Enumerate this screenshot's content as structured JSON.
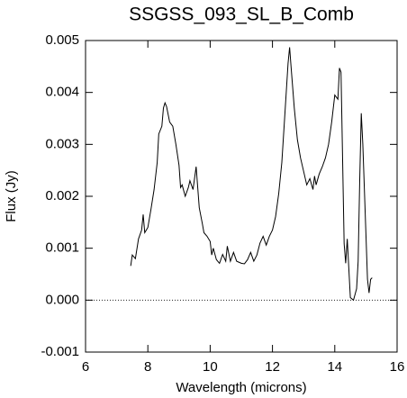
{
  "chart_data": {
    "type": "line",
    "title": "SSGSS_093_SL_B_Comb",
    "x_label": "Wavelength (microns)",
    "y_label": "Flux (Jy)",
    "x": [
      7.45,
      7.5,
      7.6,
      7.7,
      7.8,
      7.85,
      7.9,
      8.0,
      8.1,
      8.2,
      8.3,
      8.35,
      8.45,
      8.5,
      8.55,
      8.6,
      8.7,
      8.8,
      8.9,
      9.0,
      9.05,
      9.1,
      9.2,
      9.3,
      9.35,
      9.45,
      9.55,
      9.65,
      9.75,
      9.8,
      9.9,
      10.0,
      10.05,
      10.1,
      10.2,
      10.3,
      10.4,
      10.5,
      10.55,
      10.65,
      10.75,
      10.85,
      11.0,
      11.1,
      11.2,
      11.3,
      11.4,
      11.5,
      11.6,
      11.7,
      11.8,
      11.9,
      12.0,
      12.1,
      12.2,
      12.3,
      12.4,
      12.5,
      12.55,
      12.6,
      12.7,
      12.8,
      12.9,
      13.0,
      13.1,
      13.2,
      13.3,
      13.35,
      13.4,
      13.5,
      13.6,
      13.7,
      13.8,
      13.9,
      14.0,
      14.1,
      14.15,
      14.2,
      14.3,
      14.35,
      14.4,
      14.5,
      14.6,
      14.7,
      14.75,
      14.8,
      14.85,
      14.9,
      15.0,
      15.05,
      15.1,
      15.15,
      15.2
    ],
    "series": [
      {
        "name": "Flux",
        "color": "#000000",
        "values": [
          0.00066,
          0.00087,
          0.0008,
          0.00118,
          0.00135,
          0.00165,
          0.0013,
          0.0014,
          0.00175,
          0.00213,
          0.00265,
          0.0032,
          0.00335,
          0.0037,
          0.0038,
          0.00373,
          0.00343,
          0.00335,
          0.003,
          0.0026,
          0.00217,
          0.00222,
          0.002,
          0.00217,
          0.0023,
          0.00213,
          0.00257,
          0.00178,
          0.00147,
          0.0013,
          0.00123,
          0.00113,
          0.00087,
          0.001,
          0.00078,
          0.00071,
          0.00088,
          0.00075,
          0.00104,
          0.00075,
          0.00092,
          0.00075,
          0.00071,
          0.0007,
          0.00078,
          0.00092,
          0.00075,
          0.00087,
          0.0011,
          0.00123,
          0.00106,
          0.00123,
          0.00135,
          0.00161,
          0.00205,
          0.00265,
          0.0036,
          0.00456,
          0.00487,
          0.00447,
          0.0037,
          0.00309,
          0.00274,
          0.00248,
          0.00222,
          0.00234,
          0.00213,
          0.00239,
          0.00222,
          0.00243,
          0.00257,
          0.00274,
          0.003,
          0.00343,
          0.00395,
          0.00387,
          0.00447,
          0.00439,
          0.00109,
          0.00071,
          0.00118,
          5e-05,
          0,
          0.00022,
          0.00075,
          0.0023,
          0.0036,
          0.003,
          0.00127,
          0.0004,
          0.00014,
          0.0004,
          0.00043
        ]
      }
    ],
    "xlim": [
      6,
      16
    ],
    "xticks": [
      6,
      8,
      10,
      12,
      14,
      16
    ],
    "ylim": [
      -0.001,
      0.005
    ],
    "yticks": [
      -0.001,
      {
        "value": 0,
        "label": "0.000"
      },
      0.001,
      0.002,
      0.003,
      0.004,
      0.005
    ],
    "hline": 0,
    "grid": false
  }
}
